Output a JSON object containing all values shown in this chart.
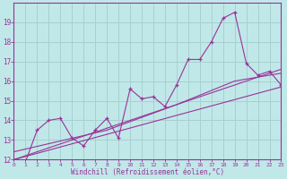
{
  "xlabel": "Windchill (Refroidissement éolien,°C)",
  "bg_color": "#c0e8e8",
  "grid_color": "#a8d0d0",
  "line_color": "#993399",
  "xlim": [
    0,
    23
  ],
  "ylim": [
    12,
    20
  ],
  "yticks": [
    12,
    13,
    14,
    15,
    16,
    17,
    18,
    19
  ],
  "xticks": [
    0,
    1,
    2,
    3,
    4,
    5,
    6,
    7,
    8,
    9,
    10,
    11,
    12,
    13,
    14,
    15,
    16,
    17,
    18,
    19,
    20,
    21,
    22,
    23
  ],
  "series1_x": [
    0,
    1,
    2,
    3,
    4,
    5,
    6,
    7,
    8,
    9,
    10,
    11,
    12,
    13,
    14,
    15,
    16,
    17,
    18,
    19,
    20,
    21,
    22,
    23
  ],
  "series1_y": [
    12.0,
    11.9,
    13.5,
    14.0,
    14.1,
    13.1,
    12.7,
    13.5,
    14.1,
    13.1,
    15.6,
    15.1,
    15.2,
    14.7,
    15.8,
    17.1,
    17.1,
    18.0,
    19.2,
    19.5,
    16.9,
    16.3,
    16.5,
    15.8
  ],
  "trend1_x": [
    0,
    23
  ],
  "trend1_y": [
    12.0,
    16.6
  ],
  "trend2_x": [
    0,
    23
  ],
  "trend2_y": [
    12.0,
    15.7
  ],
  "trend3_x": [
    0,
    8,
    14,
    19,
    23
  ],
  "trend3_y": [
    12.4,
    13.5,
    14.8,
    16.0,
    16.4
  ]
}
